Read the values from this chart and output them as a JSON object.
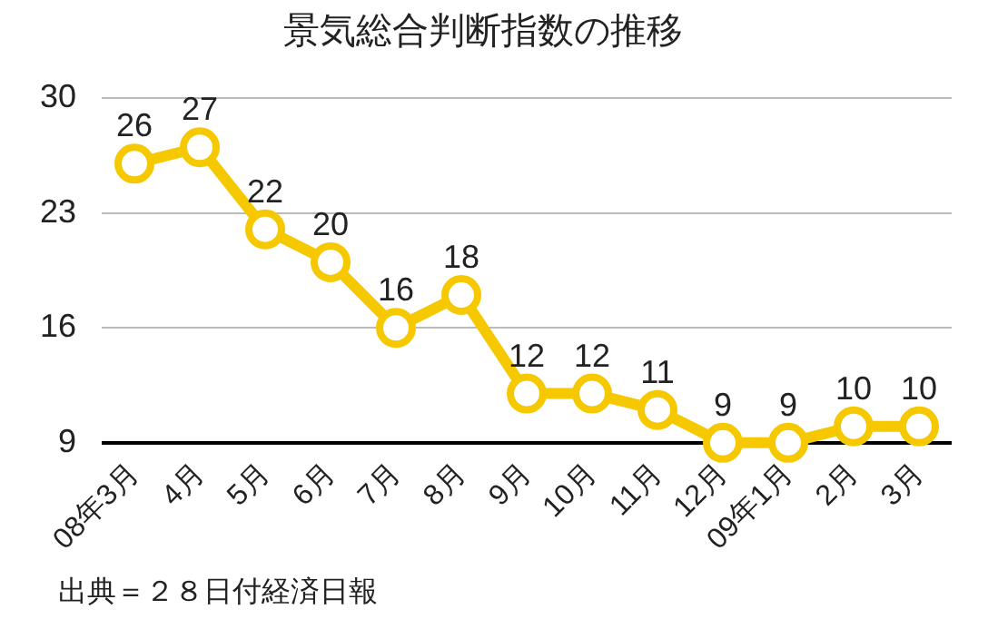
{
  "chart_data": {
    "type": "line",
    "title": "景気総合判断指数の推移",
    "categories": [
      "08年3月",
      "4月",
      "5月",
      "6月",
      "7月",
      "8月",
      "9月",
      "10月",
      "11月",
      "12月",
      "09年1月",
      "2月",
      "3月"
    ],
    "series": [
      {
        "color": "#f5c800",
        "values": [
          26,
          27,
          22,
          20,
          16,
          18,
          12,
          12,
          11,
          9,
          9,
          10,
          10
        ]
      }
    ],
    "ylim": [
      9,
      30
    ],
    "yticks": [
      9,
      16,
      23,
      30
    ],
    "grid": "y",
    "legend": false,
    "marker": "circle",
    "line_style": "solid",
    "data_labels": true,
    "annotations": [
      "出典＝２８日付経済日報"
    ]
  }
}
